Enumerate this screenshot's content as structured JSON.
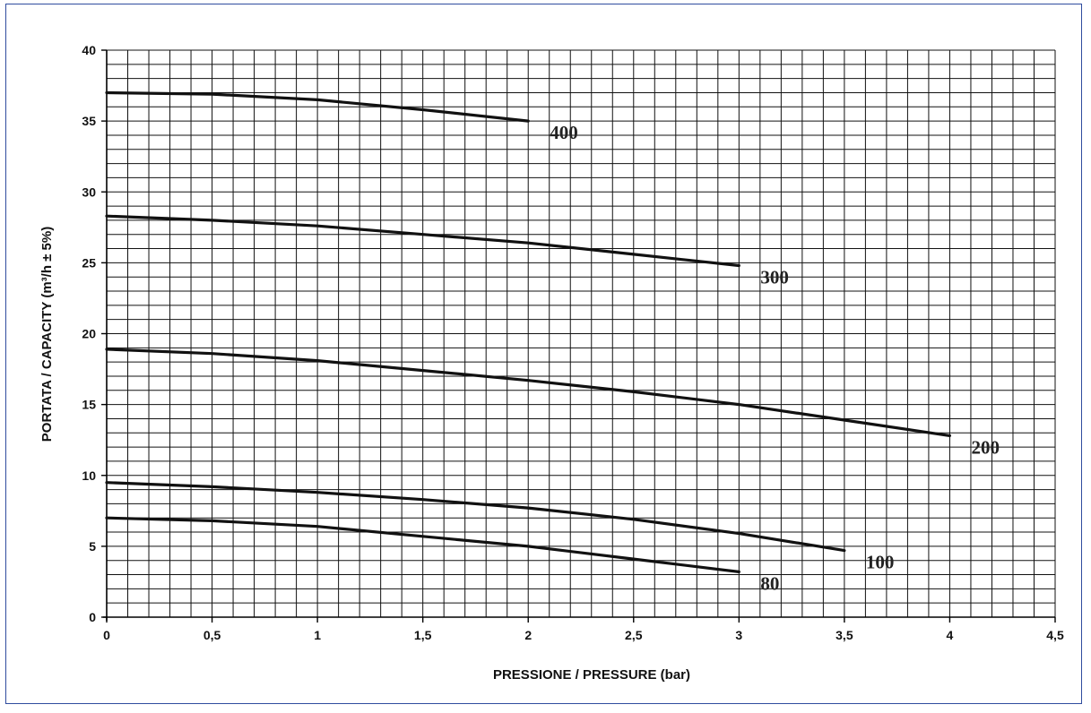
{
  "chart_data": {
    "type": "line",
    "xlabel": "PRESSIONE / PRESSURE (bar)",
    "ylabel": "PORTATA / CAPACITY (m³/h ± 5%)",
    "xlim": [
      0,
      4.5
    ],
    "ylim": [
      0,
      40
    ],
    "x_ticks": [
      0,
      0.5,
      1,
      1.5,
      2,
      2.5,
      3,
      3.5,
      4,
      4.5
    ],
    "x_tick_labels": [
      "0",
      "0,5",
      "1",
      "1,5",
      "2",
      "2,5",
      "3",
      "3,5",
      "4",
      "4,5"
    ],
    "y_ticks": [
      0,
      5,
      10,
      15,
      20,
      25,
      30,
      35,
      40
    ],
    "y_tick_labels": [
      "0",
      "5",
      "10",
      "15",
      "20",
      "25",
      "30",
      "35",
      "40"
    ],
    "grid": true,
    "grid_minor_x_step": 0.1,
    "grid_minor_y_step": 1,
    "line_color": "#111111",
    "grid_color": "#111111",
    "series": [
      {
        "name": "400",
        "x": [
          0,
          0.5,
          1,
          1.5,
          2
        ],
        "values": [
          37.0,
          36.9,
          36.5,
          35.8,
          35.0
        ]
      },
      {
        "name": "300",
        "x": [
          0,
          0.5,
          1,
          1.5,
          2,
          2.5,
          3
        ],
        "values": [
          28.3,
          28.0,
          27.6,
          27.0,
          26.4,
          25.6,
          24.8
        ]
      },
      {
        "name": "200",
        "x": [
          0,
          0.5,
          1,
          1.5,
          2,
          2.5,
          3,
          3.5,
          4
        ],
        "values": [
          18.9,
          18.6,
          18.1,
          17.4,
          16.7,
          15.9,
          15.0,
          13.9,
          12.8
        ]
      },
      {
        "name": "100",
        "x": [
          0,
          0.5,
          1,
          1.5,
          2,
          2.5,
          3,
          3.5
        ],
        "values": [
          9.5,
          9.2,
          8.8,
          8.3,
          7.7,
          6.9,
          5.9,
          4.7
        ]
      },
      {
        "name": "80",
        "x": [
          0,
          0.5,
          1,
          1.5,
          2,
          2.5,
          3
        ],
        "values": [
          7.0,
          6.8,
          6.4,
          5.7,
          5.0,
          4.1,
          3.2
        ]
      }
    ]
  }
}
